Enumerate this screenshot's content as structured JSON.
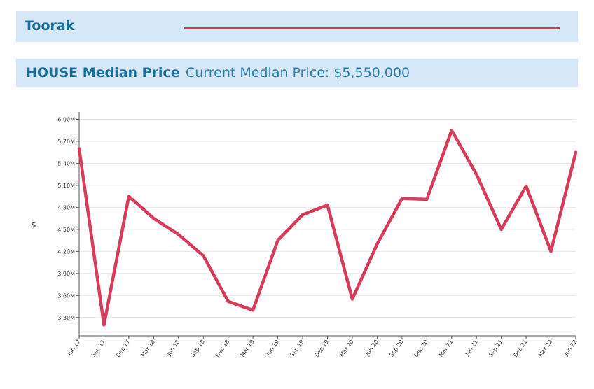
{
  "header": {
    "suburb": "Toorak",
    "property_type_label": "HOUSE Median Price",
    "current_median_label": "Current Median Price: $5,550,000"
  },
  "colors": {
    "bar_bg": "#d6e8f7",
    "heading_text": "#1a6f9c",
    "line": "#d63b5a"
  },
  "chart_data": {
    "type": "line",
    "ylabel": "$",
    "ylim": [
      3.05,
      6.1
    ],
    "yticks": [
      3.3,
      3.6,
      3.9,
      4.2,
      4.5,
      4.8,
      5.1,
      5.4,
      5.7,
      6.0
    ],
    "ytick_labels": [
      "3.30M",
      "3.60M",
      "3.90M",
      "4.20M",
      "4.50M",
      "4.80M",
      "5.10M",
      "5.40M",
      "5.70M",
      "6.00M"
    ],
    "grid": true,
    "categories": [
      "Jun 17",
      "Sep 17",
      "Dec 17",
      "Mar 18",
      "Jun 18",
      "Sep 18",
      "Dec 18",
      "Mar 19",
      "Jun 19",
      "Sep 19",
      "Dec 19",
      "Mar 20",
      "Jun 20",
      "Sep 20",
      "Dec 20",
      "Mar 21",
      "Jun 21",
      "Sep 21",
      "Dec 21",
      "Mar 22",
      "Jun 22"
    ],
    "series": [
      {
        "values": [
          5.6,
          3.2,
          4.95,
          4.65,
          4.43,
          4.14,
          3.52,
          3.4,
          4.35,
          4.7,
          4.83,
          3.55,
          4.3,
          4.92,
          4.91,
          5.85,
          5.25,
          4.5,
          5.09,
          4.2,
          5.55
        ]
      }
    ]
  }
}
